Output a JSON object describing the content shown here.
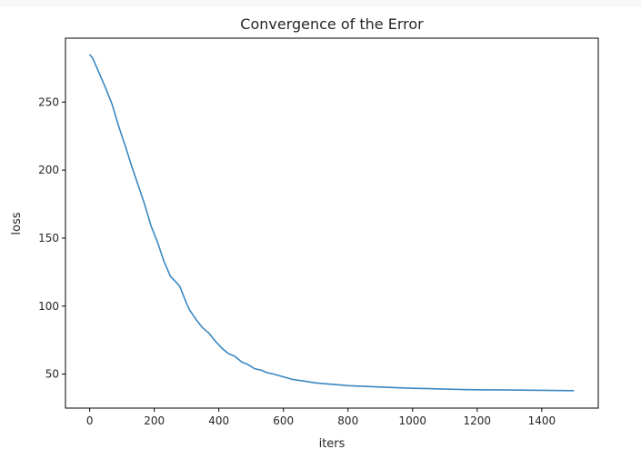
{
  "chart_data": {
    "type": "line",
    "title": "Convergence of the Error",
    "xlabel": "iters",
    "ylabel": "loss",
    "xlim": [
      -75,
      1575
    ],
    "ylim": [
      25,
      297
    ],
    "x_ticks": [
      0,
      200,
      400,
      600,
      800,
      1000,
      1200,
      1400
    ],
    "y_ticks": [
      50,
      100,
      150,
      200,
      250
    ],
    "grid": false,
    "colors": {
      "line": "#3a87c2",
      "frame": "#000000"
    },
    "series": [
      {
        "x": [
          0,
          10,
          30,
          50,
          70,
          90,
          110,
          130,
          150,
          170,
          190,
          210,
          230,
          250,
          270,
          280,
          290,
          300,
          310,
          330,
          350,
          370,
          390,
          410,
          430,
          450,
          470,
          490,
          510,
          530,
          550,
          570,
          600,
          630,
          660,
          700,
          750,
          800,
          850,
          900,
          950,
          1000,
          1050,
          1100,
          1150,
          1200,
          1300,
          1400,
          1500
        ],
        "y": [
          285,
          282,
          271,
          260,
          248,
          232,
          218,
          203,
          189,
          175,
          159,
          147,
          133,
          122,
          117,
          114,
          108,
          102,
          97,
          90,
          84,
          80,
          74,
          69,
          65,
          63,
          59,
          57,
          54,
          53,
          51,
          50,
          48,
          46,
          45,
          43.5,
          42.5,
          41.5,
          41,
          40.5,
          40,
          39.6,
          39.3,
          39,
          38.7,
          38.5,
          38.3,
          38.1,
          37.8
        ]
      }
    ]
  }
}
